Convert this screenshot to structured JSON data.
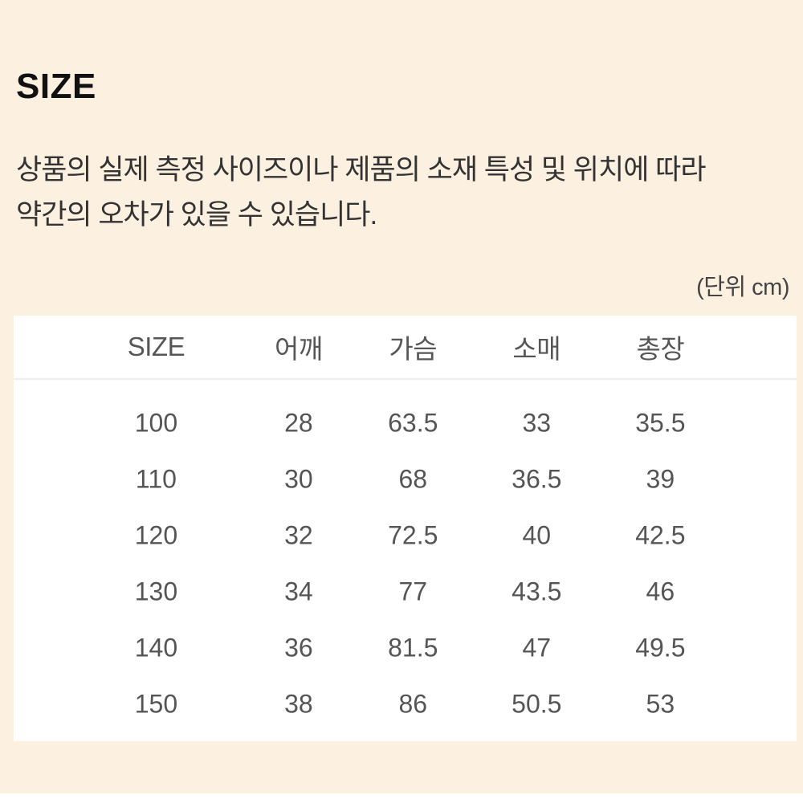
{
  "page": {
    "title": "SIZE",
    "description_line1": "상품의 실제 측정 사이즈이나 제품의 소재 특성 및 위치에 따라",
    "description_line2": "약간의 오차가 있을 수 있습니다.",
    "unit_label": "(단위 cm)"
  },
  "table": {
    "headers": [
      "SIZE",
      "어깨",
      "가슴",
      "소매",
      "총장"
    ],
    "rows": [
      [
        "100",
        "28",
        "63.5",
        "33",
        "35.5"
      ],
      [
        "110",
        "30",
        "68",
        "36.5",
        "39"
      ],
      [
        "120",
        "32",
        "72.5",
        "40",
        "42.5"
      ],
      [
        "130",
        "34",
        "77",
        "43.5",
        "46"
      ],
      [
        "140",
        "36",
        "81.5",
        "47",
        "49.5"
      ],
      [
        "150",
        "38",
        "86",
        "50.5",
        "53"
      ]
    ]
  },
  "colors": {
    "section_background": "#FCF1E1",
    "table_background": "#FFFFFF",
    "divider": "#EDEDED",
    "title_text": "#111111",
    "body_text": "#333333",
    "table_text": "#555555"
  }
}
